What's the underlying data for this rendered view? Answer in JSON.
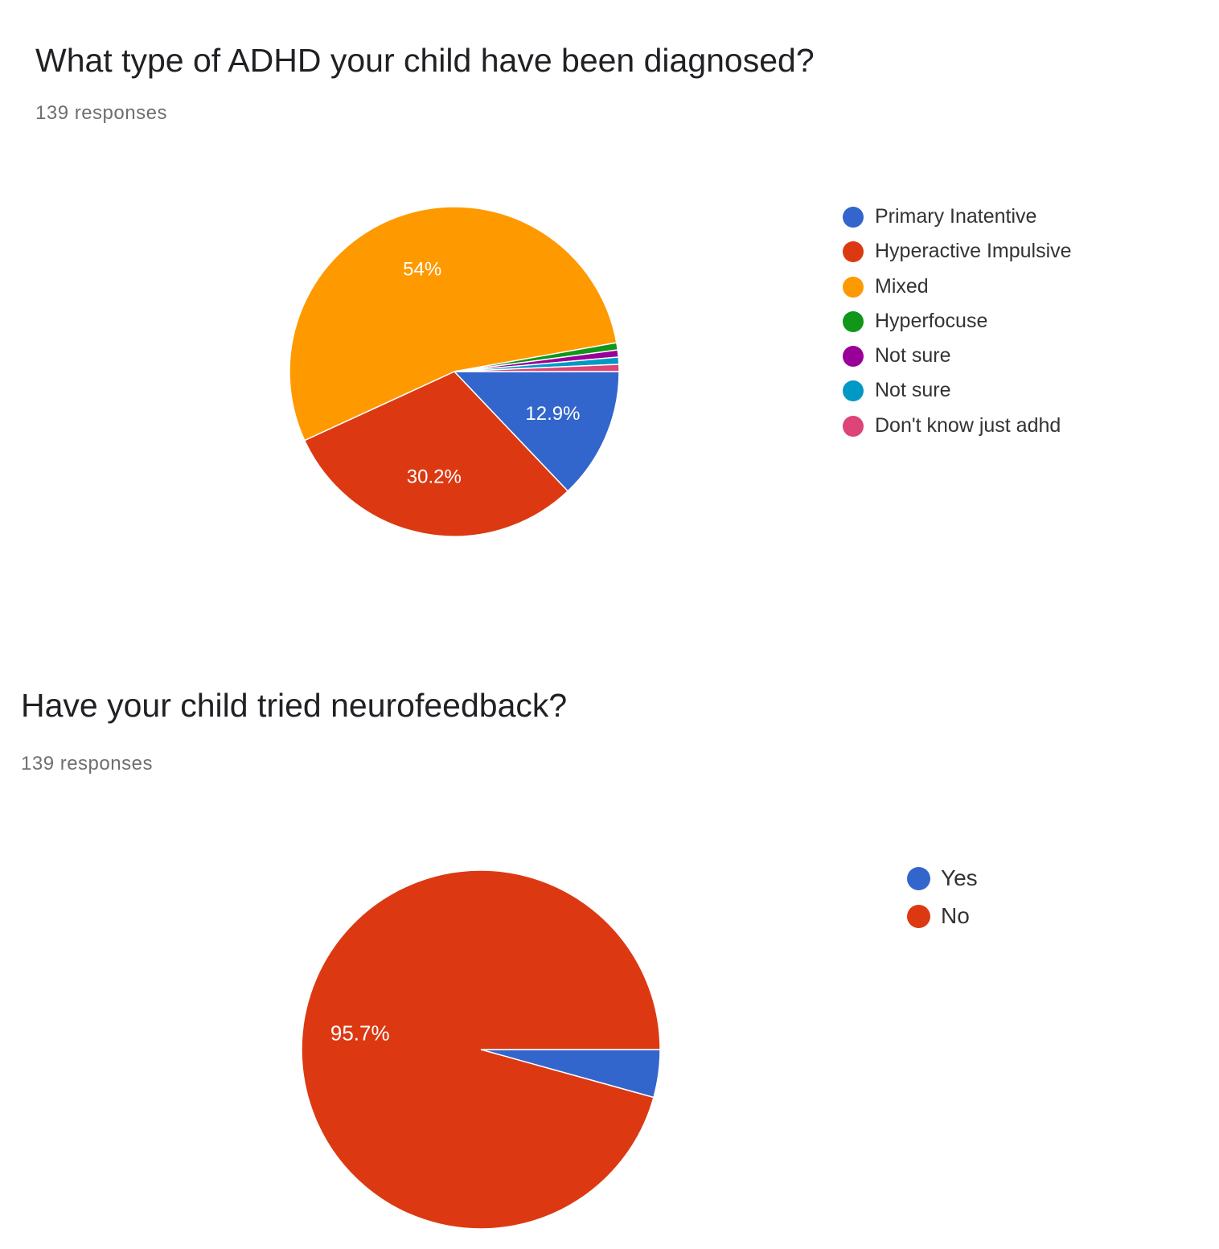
{
  "chart_data": [
    {
      "type": "pie",
      "title": "What type of ADHD your child have been diagnosed?",
      "subtitle": "139 responses",
      "legend_position": "right",
      "categories": [
        "Primary Inatentive",
        "Hyperactive Impulsive",
        "Mixed",
        "Hyperfocuse",
        "Not sure",
        "Not sure",
        "Don't know just adhd"
      ],
      "values": [
        12.9,
        30.2,
        54,
        0.7,
        0.7,
        0.7,
        0.7
      ],
      "data_labels": [
        "12.9%",
        "30.2%",
        "54%",
        "",
        "",
        "",
        ""
      ],
      "colors": [
        "#3366cc",
        "#dc3912",
        "#ff9900",
        "#109618",
        "#990099",
        "#0099c6",
        "#dd4477"
      ]
    },
    {
      "type": "pie",
      "title": "Have your child tried neurofeedback?",
      "subtitle": "139 responses",
      "legend_position": "right",
      "categories": [
        "Yes",
        "No"
      ],
      "values": [
        4.3,
        95.7
      ],
      "data_labels": [
        "",
        "95.7%"
      ],
      "colors": [
        "#3366cc",
        "#dc3912"
      ]
    }
  ]
}
